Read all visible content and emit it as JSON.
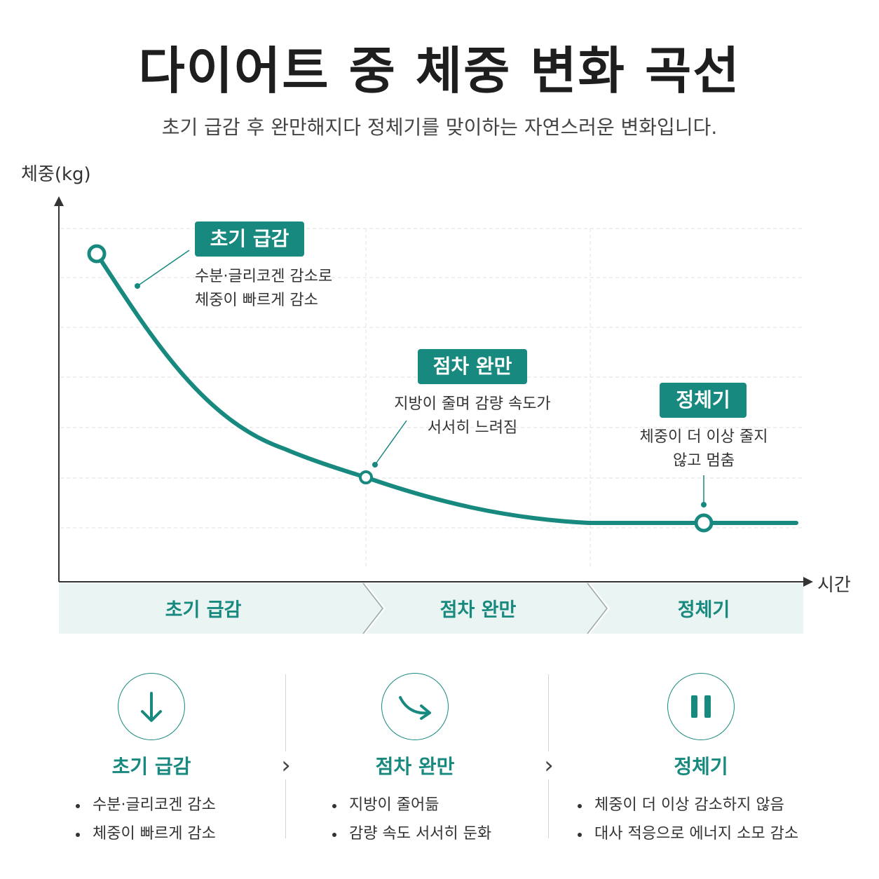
{
  "title": "다이어트 중 체중 변화 곡선",
  "subtitle": "초기 급감 후 완만해지다 정체기를 맞이하는 자연스러운 변화입니다.",
  "axes": {
    "y_label": "체중(kg)",
    "x_label": "시간"
  },
  "colors": {
    "accent": "#17897f",
    "band": "#eaf4f3",
    "text": "#222222"
  },
  "annotations": [
    {
      "badge": "초기 급감",
      "lines": [
        "수분·글리코겐 감소로",
        "체중이 빠르게 감소"
      ]
    },
    {
      "badge": "점차 완만",
      "lines": [
        "지방이 줄며 감량 속도가",
        "서서히 느려짐"
      ]
    },
    {
      "badge": "정체기",
      "lines": [
        "체중이 더 이상 줄지",
        "않고 멈춤"
      ]
    }
  ],
  "phase_band": [
    "초기 급감",
    "점차 완만",
    "정체기"
  ],
  "cards": [
    {
      "icon": "arrow-down-icon",
      "title": "초기 급감",
      "bullets": [
        "수분·글리코겐 감소",
        "체중이 빠르게 감소"
      ]
    },
    {
      "icon": "curved-arrow-icon",
      "title": "점차 완만",
      "bullets": [
        "지방이 줄어듦",
        "감량 속도 서서히 둔화"
      ]
    },
    {
      "icon": "pause-icon",
      "title": "정체기",
      "bullets": [
        "체중이 더 이상 감소하지 않음",
        "대사 적응으로 에너지 소모 감소"
      ]
    }
  ]
}
